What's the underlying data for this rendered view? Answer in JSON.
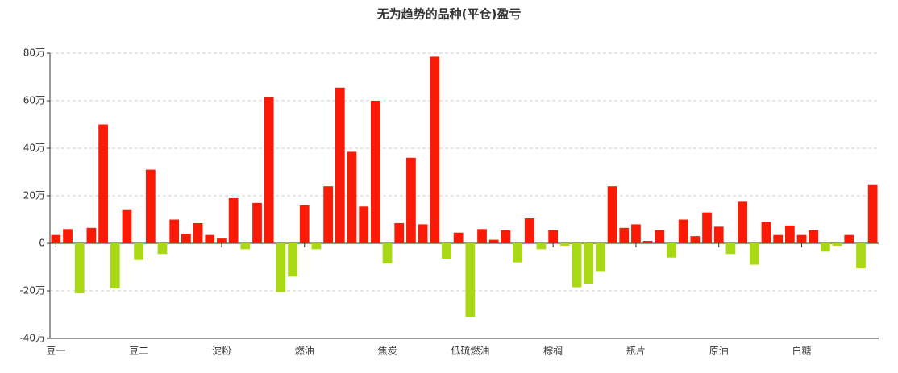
{
  "chart_data": {
    "type": "bar",
    "title": "无为趋势的品种(平仓)盈亏",
    "categories": [
      "豆一",
      null,
      null,
      null,
      null,
      null,
      null,
      "豆二",
      null,
      null,
      null,
      null,
      null,
      null,
      "淀粉",
      null,
      null,
      null,
      null,
      null,
      null,
      "燃油",
      null,
      null,
      null,
      null,
      null,
      null,
      "焦炭",
      null,
      null,
      null,
      null,
      null,
      null,
      "低硫燃油",
      null,
      null,
      null,
      null,
      null,
      null,
      "棕榈",
      null,
      null,
      null,
      null,
      null,
      null,
      "瓶片",
      null,
      null,
      null,
      null,
      null,
      null,
      "原油",
      null,
      null,
      null,
      null,
      null,
      null,
      "白糖",
      null,
      null,
      null,
      null,
      null,
      null
    ],
    "values": [
      3.5,
      6,
      -21,
      6.5,
      50,
      -19,
      14,
      -7,
      31,
      -4.5,
      10,
      4,
      8.5,
      3.5,
      2,
      19,
      -2.5,
      17,
      61.5,
      -20.5,
      -14,
      16,
      -2.5,
      24,
      65.5,
      38.5,
      15.5,
      60,
      -8.5,
      8.5,
      36,
      8,
      78.5,
      -6.5,
      4.5,
      -31,
      6,
      1.5,
      5.5,
      -8,
      10.5,
      -2.5,
      5.5,
      -1,
      -18.5,
      -17,
      -12,
      24,
      6.5,
      8,
      1,
      5.5,
      -6,
      10,
      3,
      13,
      7,
      -4.5,
      17.5,
      -9,
      9,
      3.5,
      7.5,
      3.5,
      5.5,
      -3.5,
      -1,
      3.5,
      -10.5,
      24.5
    ],
    "color": "#fb1a06",
    "negative_color": "#a9d915",
    "ylim": [
      -40,
      80
    ],
    "yticks": [
      {
        "value": -40,
        "label": "-40万"
      },
      {
        "value": -20,
        "label": "-20万"
      },
      0,
      {
        "value": 20,
        "label": "20万"
      },
      {
        "value": 40,
        "label": "40万"
      },
      {
        "value": 60,
        "label": "60万"
      },
      {
        "value": 80,
        "label": "80万"
      }
    ],
    "grid": true
  }
}
